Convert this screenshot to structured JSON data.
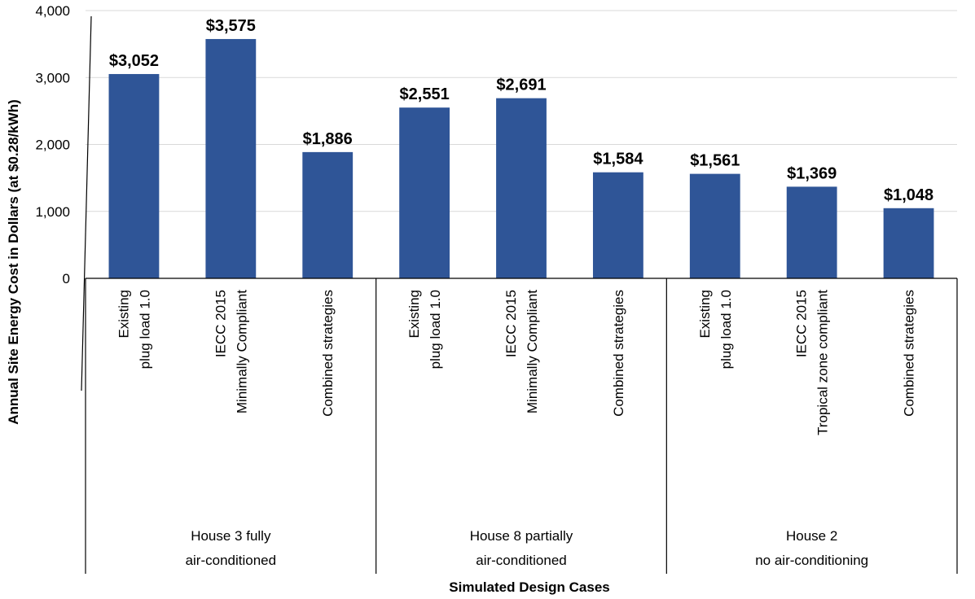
{
  "chart_data": {
    "type": "bar",
    "ylabel": "Annual Site Energy Cost in Dollars (at $0.28/kWh)",
    "xlabel": "Simulated Design Cases",
    "ylim": [
      0,
      4000
    ],
    "yticks": [
      "0",
      "1,000",
      "2,000",
      "3,000",
      "4,000"
    ],
    "ytick_values": [
      0,
      1000,
      2000,
      3000,
      4000
    ],
    "grid": true,
    "bar_color": "#2F5597",
    "categories": [
      [
        "Existing",
        "plug load 1.0"
      ],
      [
        "IECC 2015",
        "Minimally Compliant"
      ],
      [
        "Combined strategies"
      ],
      [
        "Existing",
        "plug load 1.0"
      ],
      [
        "IECC 2015",
        "Minimally Compliant"
      ],
      [
        "Combined strategies"
      ],
      [
        "Existing",
        "plug load 1.0"
      ],
      [
        "IECC 2015",
        "Tropical zone compliant"
      ],
      [
        "Combined strategies"
      ]
    ],
    "values": [
      3052,
      3575,
      1886,
      2551,
      2691,
      1584,
      1561,
      1369,
      1048
    ],
    "value_labels": [
      "$3,052",
      "$3,575",
      "$1,886",
      "$2,551",
      "$2,691",
      "$1,584",
      "$1,561",
      "$1,369",
      "$1,048"
    ],
    "groups": [
      {
        "label": [
          "House 3 fully",
          "air-conditioned"
        ],
        "count": 3
      },
      {
        "label": [
          "House 8 partially",
          "air-conditioned"
        ],
        "count": 3
      },
      {
        "label": [
          "House 2",
          "no air-conditioning"
        ],
        "count": 3
      }
    ]
  }
}
